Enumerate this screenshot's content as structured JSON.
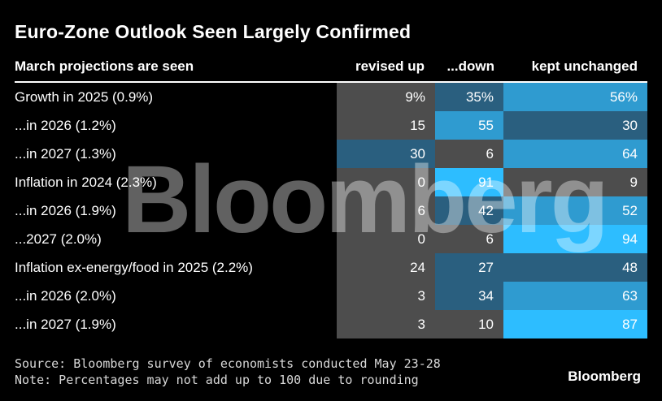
{
  "title": "Euro-Zone Outlook Seen Largely Confirmed",
  "watermark": "Bloomberg",
  "brand": "Bloomberg",
  "source": "Source: Bloomberg survey of economists conducted May 23-28",
  "note": "Note: Percentages may not add up to 100 due to rounding",
  "colors": {
    "background": "#000000",
    "low": "#4d4d4d",
    "mid": "#2a5f7f",
    "high": "#2f9bd0",
    "max": "#2dbdff"
  },
  "chart_data": {
    "type": "table",
    "columns": [
      "March projections are seen",
      "revised up",
      "...down",
      "kept unchanged"
    ],
    "rows": [
      {
        "label": "Growth in 2025 (0.9%)",
        "up": "9%",
        "down": "35%",
        "kept": "56%",
        "shade": [
          "low",
          "mid",
          "high"
        ]
      },
      {
        "label": "...in 2026 (1.2%)",
        "up": "15",
        "down": "55",
        "kept": "30",
        "shade": [
          "low",
          "high",
          "mid"
        ]
      },
      {
        "label": "...in 2027 (1.3%)",
        "up": "30",
        "down": "6",
        "kept": "64",
        "shade": [
          "mid",
          "low",
          "high"
        ]
      },
      {
        "label": "Inflation in 2024 (2.3%)",
        "up": "0",
        "down": "91",
        "kept": "9",
        "shade": [
          "low",
          "max",
          "low"
        ]
      },
      {
        "label": "...in 2026 (1.9%)",
        "up": "6",
        "down": "42",
        "kept": "52",
        "shade": [
          "low",
          "mid",
          "high"
        ]
      },
      {
        "label": "...2027 (2.0%)",
        "up": "0",
        "down": "6",
        "kept": "94",
        "shade": [
          "low",
          "low",
          "max"
        ]
      },
      {
        "label": "Inflation ex-energy/food in 2025 (2.2%)",
        "up": "24",
        "down": "27",
        "kept": "48",
        "shade": [
          "low",
          "mid",
          "mid"
        ]
      },
      {
        "label": "...in 2026 (2.0%)",
        "up": "3",
        "down": "34",
        "kept": "63",
        "shade": [
          "low",
          "mid",
          "high"
        ]
      },
      {
        "label": "...in 2027 (1.9%)",
        "up": "3",
        "down": "10",
        "kept": "87",
        "shade": [
          "low",
          "low",
          "max"
        ]
      }
    ]
  }
}
